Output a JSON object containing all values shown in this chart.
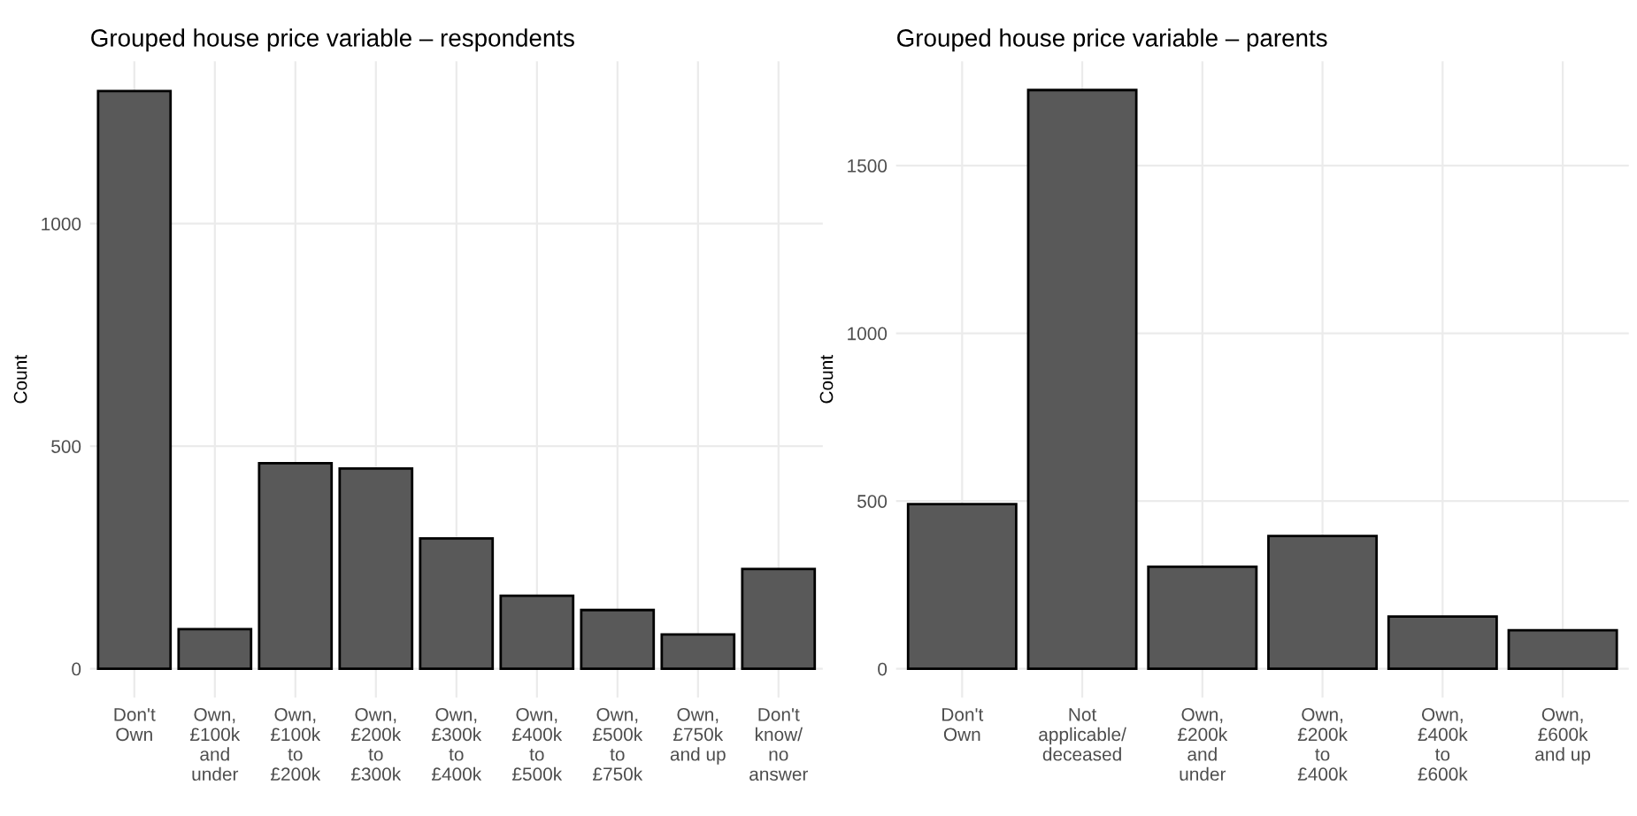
{
  "chart_data": [
    {
      "type": "bar",
      "title": "Grouped house price variable – respondents",
      "ylabel": "Count",
      "categories": [
        "Don't\nOwn",
        "Own,\n£100k\nand\nunder",
        "Own,\n£100k\nto\n£200k",
        "Own,\n£200k\nto\n£300k",
        "Own,\n£300k\nto\n£400k",
        "Own,\n£400k\nto\n£500k",
        "Own,\n£500k\nto\n£750k",
        "Own,\n£750k\nand up",
        "Don't\nknow/\nno\nanswer"
      ],
      "values": [
        1298,
        89,
        462,
        450,
        293,
        164,
        132,
        77,
        224
      ],
      "color": "#595959",
      "ylim": [
        -65,
        1365
      ],
      "yticks": [
        0,
        500,
        1000
      ],
      "grid": true
    },
    {
      "type": "bar",
      "title": "Grouped house price variable – parents",
      "ylabel": "Count",
      "categories": [
        "Don't\nOwn",
        "Not\napplicable/\ndeceased",
        "Own,\n£200k\nand\nunder",
        "Own,\n£200k\nto\n£400k",
        "Own,\n£400k\nto\n£600k",
        "Own,\n£600k\nand up"
      ],
      "values": [
        491,
        1725,
        304,
        396,
        156,
        115
      ],
      "color": "#595959",
      "ylim": [
        -86,
        1811
      ],
      "yticks": [
        0,
        500,
        1000,
        1500
      ],
      "grid": true
    }
  ]
}
